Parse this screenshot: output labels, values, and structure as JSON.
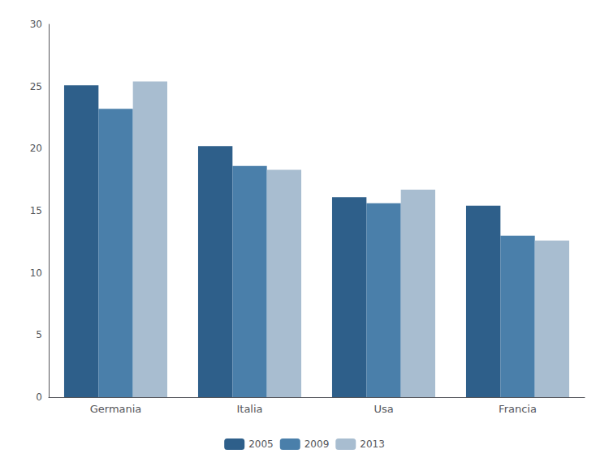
{
  "chart_data": {
    "type": "bar",
    "categories": [
      "Germania",
      "Italia",
      "Usa",
      "Francia"
    ],
    "series": [
      {
        "name": "2005",
        "color": "#2e5f8a",
        "values": [
          25.1,
          20.2,
          16.1,
          15.4
        ]
      },
      {
        "name": "2009",
        "color": "#4a7faa",
        "values": [
          23.2,
          18.6,
          15.6,
          13.0
        ]
      },
      {
        "name": "2013",
        "color": "#a8bdd0",
        "values": [
          25.4,
          18.3,
          16.7,
          12.6
        ]
      }
    ],
    "ylim": [
      0,
      30
    ],
    "yticks": [
      0,
      5,
      10,
      15,
      20,
      25,
      30
    ],
    "grid": false,
    "legend": "bottom"
  }
}
